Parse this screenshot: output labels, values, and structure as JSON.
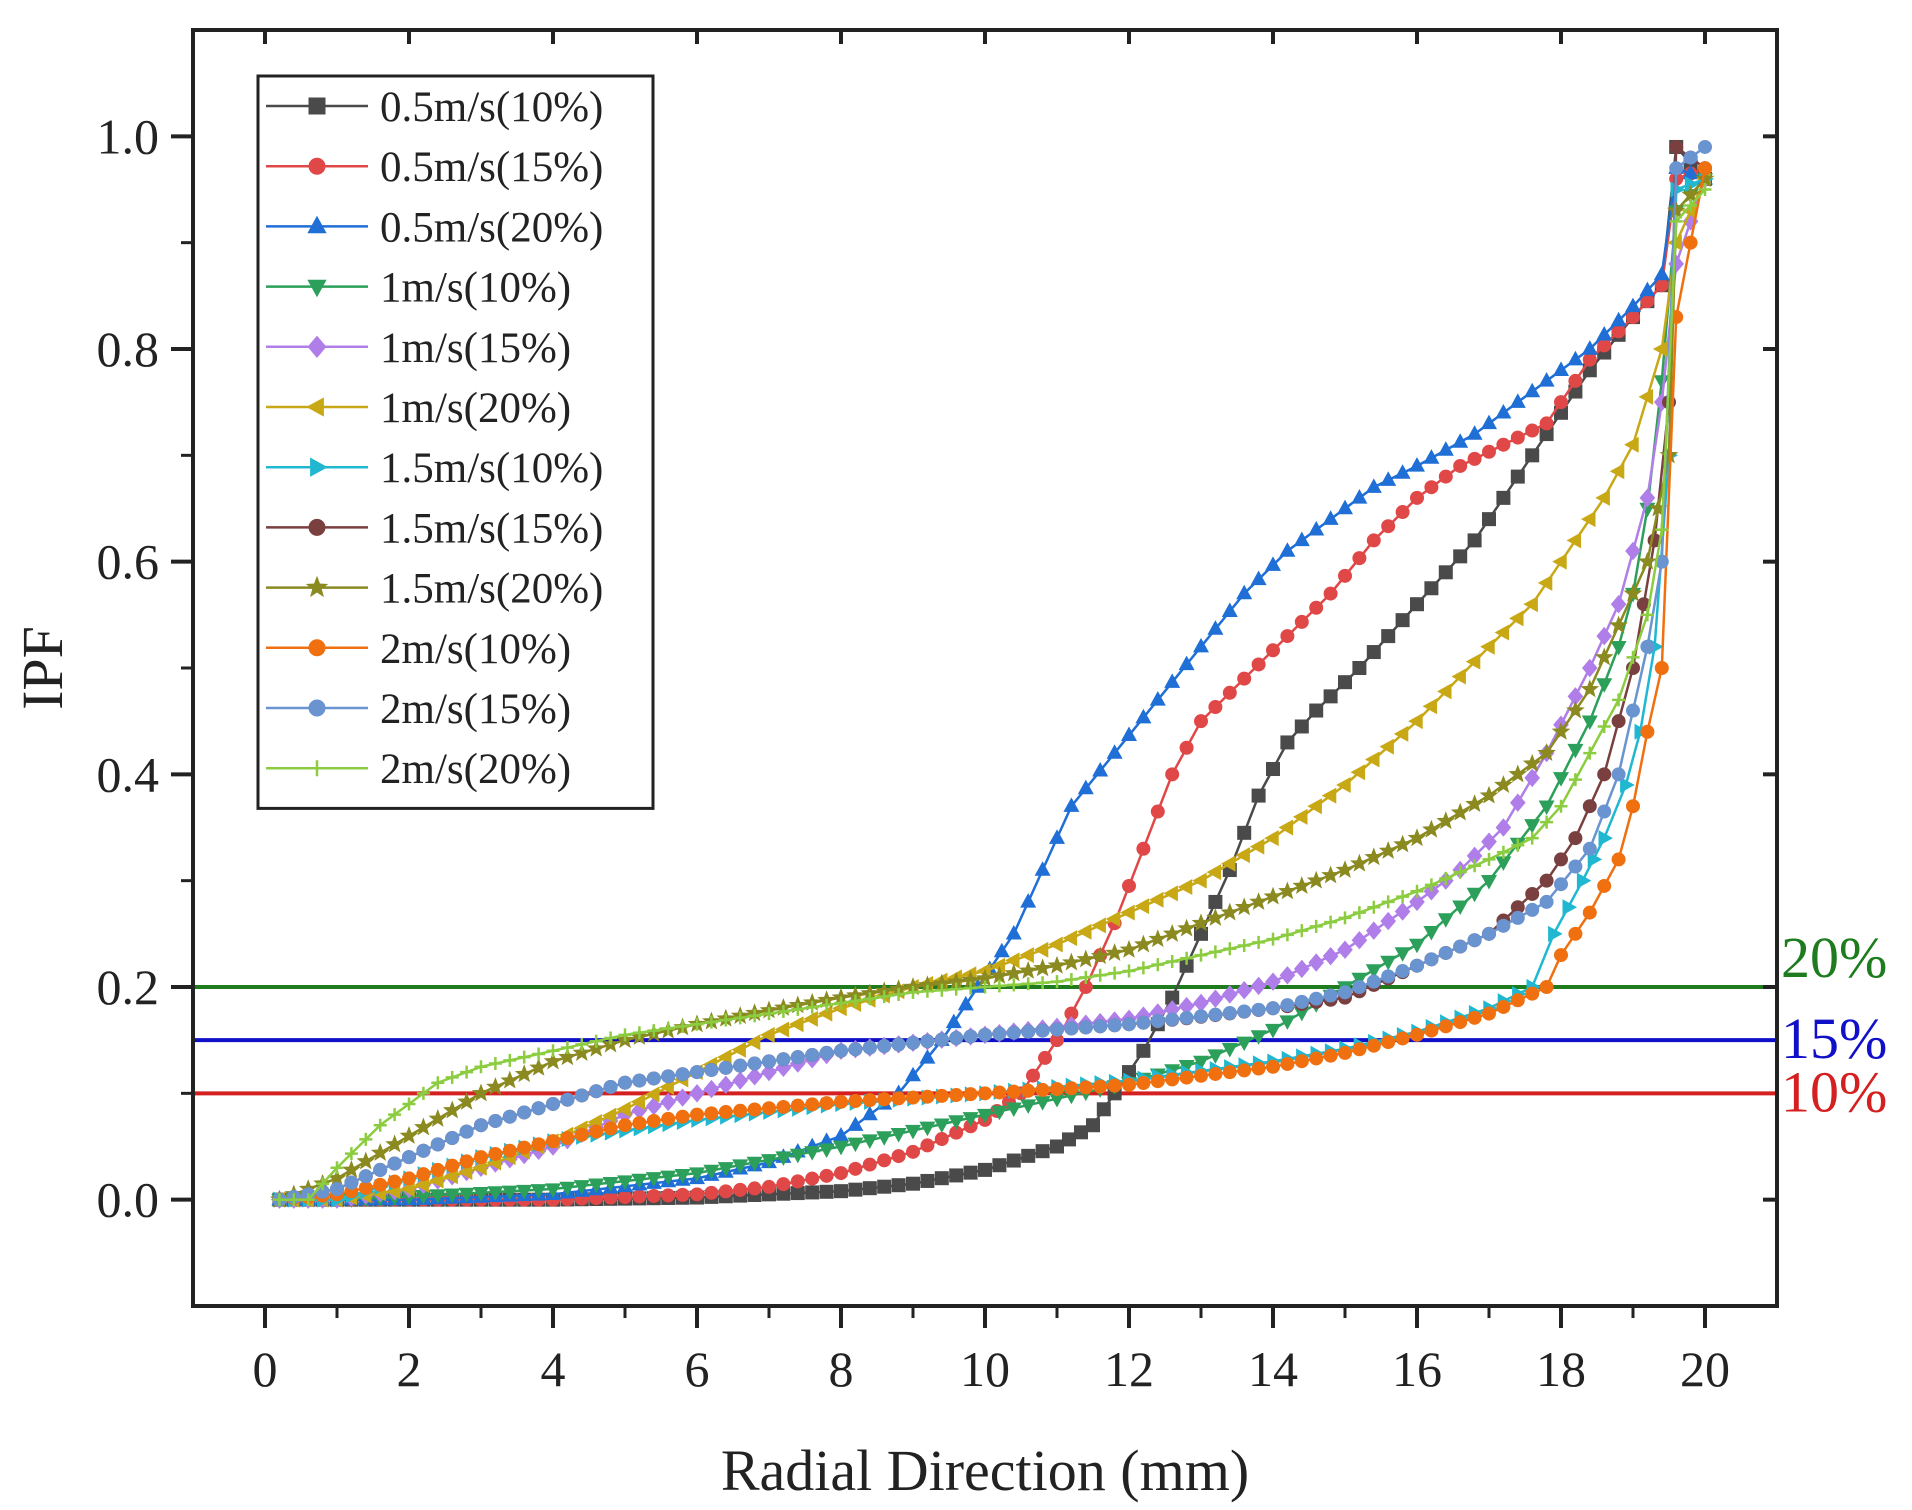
{
  "chart_data": {
    "type": "line",
    "title": "",
    "xlabel": "Radial Direction (mm)",
    "ylabel": "IPF",
    "xlim": [
      -1,
      21
    ],
    "ylim": [
      -0.1,
      1.1
    ],
    "x_ticks": [
      0,
      2,
      4,
      6,
      8,
      10,
      12,
      14,
      16,
      18,
      20
    ],
    "y_ticks": [
      0.0,
      0.2,
      0.4,
      0.6,
      0.8,
      1.0
    ],
    "x_tick_labels": [
      "0",
      "2",
      "4",
      "6",
      "8",
      "10",
      "12",
      "14",
      "16",
      "18",
      "20"
    ],
    "y_tick_labels": [
      "0.0",
      "0.2",
      "0.4",
      "0.6",
      "0.8",
      "1.0"
    ],
    "legend_position": "top-left",
    "reference_lines": [
      {
        "label": "20%",
        "value": 0.2,
        "color": "#1e7b1e"
      },
      {
        "label": "15%",
        "value": 0.15,
        "color": "#1010c8"
      },
      {
        "label": "10%",
        "value": 0.1,
        "color": "#d42020"
      }
    ],
    "series": [
      {
        "name": "0.5m/s(10%)",
        "color": "#4a4a4a",
        "marker": "square",
        "points": [
          [
            0.2,
            0
          ],
          [
            2,
            0
          ],
          [
            4,
            0
          ],
          [
            6,
            0.002
          ],
          [
            8,
            0.008
          ],
          [
            9,
            0.015
          ],
          [
            10,
            0.028
          ],
          [
            11,
            0.05
          ],
          [
            11.5,
            0.07
          ],
          [
            11.8,
            0.1
          ],
          [
            12.2,
            0.14
          ],
          [
            12.6,
            0.19
          ],
          [
            13,
            0.25
          ],
          [
            13.4,
            0.31
          ],
          [
            13.8,
            0.38
          ],
          [
            14.2,
            0.43
          ],
          [
            14.6,
            0.46
          ],
          [
            15.2,
            0.5
          ],
          [
            16,
            0.56
          ],
          [
            16.8,
            0.62
          ],
          [
            17.6,
            0.7
          ],
          [
            18.4,
            0.78
          ],
          [
            19,
            0.83
          ],
          [
            19.4,
            0.86
          ],
          [
            19.6,
            0.99
          ],
          [
            20,
            0.96
          ]
        ]
      },
      {
        "name": "0.5m/s(15%)",
        "color": "#e04848",
        "marker": "circle",
        "points": [
          [
            0.2,
            0
          ],
          [
            2,
            0
          ],
          [
            4,
            0
          ],
          [
            6,
            0.005
          ],
          [
            7,
            0.012
          ],
          [
            8,
            0.025
          ],
          [
            9,
            0.045
          ],
          [
            10,
            0.075
          ],
          [
            10.5,
            0.1
          ],
          [
            11,
            0.15
          ],
          [
            11.4,
            0.2
          ],
          [
            11.8,
            0.26
          ],
          [
            12.2,
            0.33
          ],
          [
            12.6,
            0.4
          ],
          [
            13,
            0.45
          ],
          [
            13.6,
            0.49
          ],
          [
            14.2,
            0.53
          ],
          [
            14.8,
            0.57
          ],
          [
            15.4,
            0.62
          ],
          [
            16,
            0.66
          ],
          [
            16.6,
            0.69
          ],
          [
            17.2,
            0.71
          ],
          [
            17.8,
            0.73
          ],
          [
            18.4,
            0.79
          ],
          [
            19,
            0.83
          ],
          [
            19.4,
            0.86
          ],
          [
            19.6,
            0.96
          ],
          [
            20,
            0.97
          ]
        ]
      },
      {
        "name": "0.5m/s(20%)",
        "color": "#1f6fd6",
        "marker": "triangle-up",
        "points": [
          [
            0.2,
            0
          ],
          [
            2,
            0
          ],
          [
            4,
            0.005
          ],
          [
            6,
            0.02
          ],
          [
            7,
            0.035
          ],
          [
            8,
            0.06
          ],
          [
            8.8,
            0.1
          ],
          [
            9.4,
            0.15
          ],
          [
            9.9,
            0.2
          ],
          [
            10.4,
            0.25
          ],
          [
            10.8,
            0.31
          ],
          [
            11.2,
            0.37
          ],
          [
            11.8,
            0.42
          ],
          [
            12.4,
            0.47
          ],
          [
            13,
            0.52
          ],
          [
            13.6,
            0.57
          ],
          [
            14.2,
            0.61
          ],
          [
            14.8,
            0.64
          ],
          [
            15.4,
            0.67
          ],
          [
            16,
            0.69
          ],
          [
            16.8,
            0.72
          ],
          [
            17.6,
            0.76
          ],
          [
            18.4,
            0.8
          ],
          [
            19,
            0.84
          ],
          [
            19.4,
            0.87
          ],
          [
            19.6,
            0.97
          ],
          [
            20,
            0.96
          ]
        ]
      },
      {
        "name": "1m/s(10%)",
        "color": "#2ca05a",
        "marker": "triangle-down",
        "points": [
          [
            0.2,
            0
          ],
          [
            1,
            0
          ],
          [
            2,
            0.003
          ],
          [
            4,
            0.01
          ],
          [
            6,
            0.025
          ],
          [
            8,
            0.05
          ],
          [
            10,
            0.08
          ],
          [
            12,
            0.11
          ],
          [
            13,
            0.13
          ],
          [
            14,
            0.16
          ],
          [
            15,
            0.2
          ],
          [
            16,
            0.24
          ],
          [
            17,
            0.3
          ],
          [
            17.8,
            0.37
          ],
          [
            18.4,
            0.45
          ],
          [
            18.8,
            0.52
          ],
          [
            19,
            0.57
          ],
          [
            19.2,
            0.65
          ],
          [
            19.4,
            0.77
          ],
          [
            19.6,
            0.93
          ],
          [
            20,
            0.96
          ]
        ]
      },
      {
        "name": "1m/s(15%)",
        "color": "#b07ee8",
        "marker": "diamond",
        "points": [
          [
            0.2,
            0
          ],
          [
            1,
            0
          ],
          [
            2,
            0.01
          ],
          [
            3,
            0.03
          ],
          [
            4,
            0.05
          ],
          [
            5,
            0.08
          ],
          [
            6,
            0.1
          ],
          [
            7,
            0.12
          ],
          [
            8,
            0.14
          ],
          [
            10,
            0.155
          ],
          [
            12,
            0.17
          ],
          [
            13,
            0.185
          ],
          [
            14,
            0.205
          ],
          [
            15,
            0.235
          ],
          [
            16,
            0.28
          ],
          [
            16.6,
            0.31
          ],
          [
            17.2,
            0.35
          ],
          [
            17.8,
            0.42
          ],
          [
            18.4,
            0.5
          ],
          [
            18.8,
            0.56
          ],
          [
            19.2,
            0.66
          ],
          [
            19.4,
            0.75
          ],
          [
            19.6,
            0.88
          ],
          [
            20,
            0.96
          ]
        ]
      },
      {
        "name": "1m/s(20%)",
        "color": "#c8a814",
        "marker": "triangle-left",
        "points": [
          [
            0.2,
            0
          ],
          [
            1,
            0
          ],
          [
            2,
            0.01
          ],
          [
            3,
            0.03
          ],
          [
            4,
            0.055
          ],
          [
            5,
            0.085
          ],
          [
            6,
            0.12
          ],
          [
            7,
            0.155
          ],
          [
            8,
            0.18
          ],
          [
            9,
            0.2
          ],
          [
            10,
            0.215
          ],
          [
            11,
            0.24
          ],
          [
            12,
            0.27
          ],
          [
            13,
            0.3
          ],
          [
            14,
            0.34
          ],
          [
            15,
            0.39
          ],
          [
            16,
            0.45
          ],
          [
            17,
            0.52
          ],
          [
            17.6,
            0.56
          ],
          [
            18,
            0.6
          ],
          [
            18.6,
            0.66
          ],
          [
            19,
            0.71
          ],
          [
            19.4,
            0.8
          ],
          [
            19.6,
            0.9
          ],
          [
            20,
            0.96
          ]
        ]
      },
      {
        "name": "1.5m/s(10%)",
        "color": "#20b8d0",
        "marker": "triangle-right",
        "points": [
          [
            0.2,
            0
          ],
          [
            1,
            0
          ],
          [
            2,
            0.02
          ],
          [
            3,
            0.04
          ],
          [
            4,
            0.055
          ],
          [
            6,
            0.075
          ],
          [
            8,
            0.09
          ],
          [
            10,
            0.1
          ],
          [
            12,
            0.112
          ],
          [
            14,
            0.13
          ],
          [
            15,
            0.142
          ],
          [
            16,
            0.158
          ],
          [
            17,
            0.18
          ],
          [
            17.6,
            0.2
          ],
          [
            17.9,
            0.25
          ],
          [
            18.3,
            0.3
          ],
          [
            18.6,
            0.34
          ],
          [
            18.9,
            0.39
          ],
          [
            19.1,
            0.44
          ],
          [
            19.3,
            0.52
          ],
          [
            19.5,
            0.7
          ],
          [
            19.6,
            0.95
          ],
          [
            20,
            0.96
          ]
        ]
      },
      {
        "name": "1.5m/s(15%)",
        "color": "#7a4040",
        "marker": "circle",
        "points": [
          [
            0.2,
            0
          ],
          [
            1,
            0.01
          ],
          [
            2,
            0.04
          ],
          [
            3,
            0.07
          ],
          [
            4,
            0.09
          ],
          [
            5,
            0.11
          ],
          [
            6,
            0.12
          ],
          [
            8,
            0.14
          ],
          [
            10,
            0.155
          ],
          [
            12,
            0.165
          ],
          [
            13,
            0.172
          ],
          [
            14,
            0.18
          ],
          [
            15,
            0.19
          ],
          [
            16,
            0.22
          ],
          [
            17,
            0.25
          ],
          [
            17.8,
            0.3
          ],
          [
            18.2,
            0.34
          ],
          [
            18.6,
            0.4
          ],
          [
            19,
            0.5
          ],
          [
            19.3,
            0.62
          ],
          [
            19.5,
            0.75
          ],
          [
            19.6,
            0.99
          ],
          [
            20,
            0.97
          ]
        ]
      },
      {
        "name": "1.5m/s(20%)",
        "color": "#8a8a20",
        "marker": "star",
        "points": [
          [
            0.2,
            0
          ],
          [
            1,
            0.02
          ],
          [
            2,
            0.06
          ],
          [
            3,
            0.1
          ],
          [
            4,
            0.13
          ],
          [
            5,
            0.15
          ],
          [
            6,
            0.165
          ],
          [
            7,
            0.178
          ],
          [
            8,
            0.19
          ],
          [
            9,
            0.2
          ],
          [
            10,
            0.208
          ],
          [
            11,
            0.22
          ],
          [
            12,
            0.235
          ],
          [
            13,
            0.26
          ],
          [
            14,
            0.285
          ],
          [
            15,
            0.31
          ],
          [
            16,
            0.34
          ],
          [
            17,
            0.38
          ],
          [
            17.8,
            0.42
          ],
          [
            18.4,
            0.48
          ],
          [
            18.8,
            0.54
          ],
          [
            19.2,
            0.6
          ],
          [
            19.5,
            0.7
          ],
          [
            19.6,
            0.93
          ],
          [
            20,
            0.96
          ]
        ]
      },
      {
        "name": "2m/s(10%)",
        "color": "#f07010",
        "marker": "circle",
        "points": [
          [
            0.2,
            0
          ],
          [
            1,
            0.005
          ],
          [
            2,
            0.02
          ],
          [
            3,
            0.04
          ],
          [
            4,
            0.055
          ],
          [
            5,
            0.07
          ],
          [
            6,
            0.08
          ],
          [
            8,
            0.092
          ],
          [
            10,
            0.1
          ],
          [
            12,
            0.108
          ],
          [
            14,
            0.125
          ],
          [
            15,
            0.138
          ],
          [
            16,
            0.155
          ],
          [
            17,
            0.175
          ],
          [
            17.8,
            0.2
          ],
          [
            18,
            0.23
          ],
          [
            18.4,
            0.27
          ],
          [
            18.8,
            0.32
          ],
          [
            19,
            0.37
          ],
          [
            19.2,
            0.44
          ],
          [
            19.4,
            0.5
          ],
          [
            19.6,
            0.83
          ],
          [
            20,
            0.97
          ]
        ]
      },
      {
        "name": "2m/s(15%)",
        "color": "#6a94d0",
        "marker": "circle",
        "points": [
          [
            0.2,
            0
          ],
          [
            1,
            0.01
          ],
          [
            2,
            0.04
          ],
          [
            3,
            0.07
          ],
          [
            4,
            0.09
          ],
          [
            5,
            0.11
          ],
          [
            6,
            0.12
          ],
          [
            8,
            0.14
          ],
          [
            10,
            0.155
          ],
          [
            12,
            0.165
          ],
          [
            14,
            0.18
          ],
          [
            15,
            0.195
          ],
          [
            16,
            0.22
          ],
          [
            17,
            0.25
          ],
          [
            17.8,
            0.28
          ],
          [
            18.4,
            0.33
          ],
          [
            18.8,
            0.4
          ],
          [
            19,
            0.46
          ],
          [
            19.2,
            0.52
          ],
          [
            19.4,
            0.6
          ],
          [
            19.6,
            0.97
          ],
          [
            20,
            0.99
          ]
        ]
      },
      {
        "name": "2m/s(20%)",
        "color": "#8ccc40",
        "marker": "plus",
        "points": [
          [
            0.2,
            0
          ],
          [
            0.6,
            0
          ],
          [
            1,
            0.03
          ],
          [
            1.6,
            0.07
          ],
          [
            2.4,
            0.11
          ],
          [
            3,
            0.125
          ],
          [
            4,
            0.14
          ],
          [
            5,
            0.155
          ],
          [
            6,
            0.165
          ],
          [
            7,
            0.175
          ],
          [
            8,
            0.185
          ],
          [
            9,
            0.195
          ],
          [
            10,
            0.2
          ],
          [
            11,
            0.205
          ],
          [
            12,
            0.215
          ],
          [
            13,
            0.23
          ],
          [
            14,
            0.245
          ],
          [
            15,
            0.265
          ],
          [
            16,
            0.29
          ],
          [
            17,
            0.32
          ],
          [
            17.6,
            0.34
          ],
          [
            18,
            0.37
          ],
          [
            18.4,
            0.42
          ],
          [
            18.8,
            0.47
          ],
          [
            19.2,
            0.55
          ],
          [
            19.4,
            0.63
          ],
          [
            19.6,
            0.92
          ],
          [
            20,
            0.95
          ]
        ]
      }
    ]
  }
}
